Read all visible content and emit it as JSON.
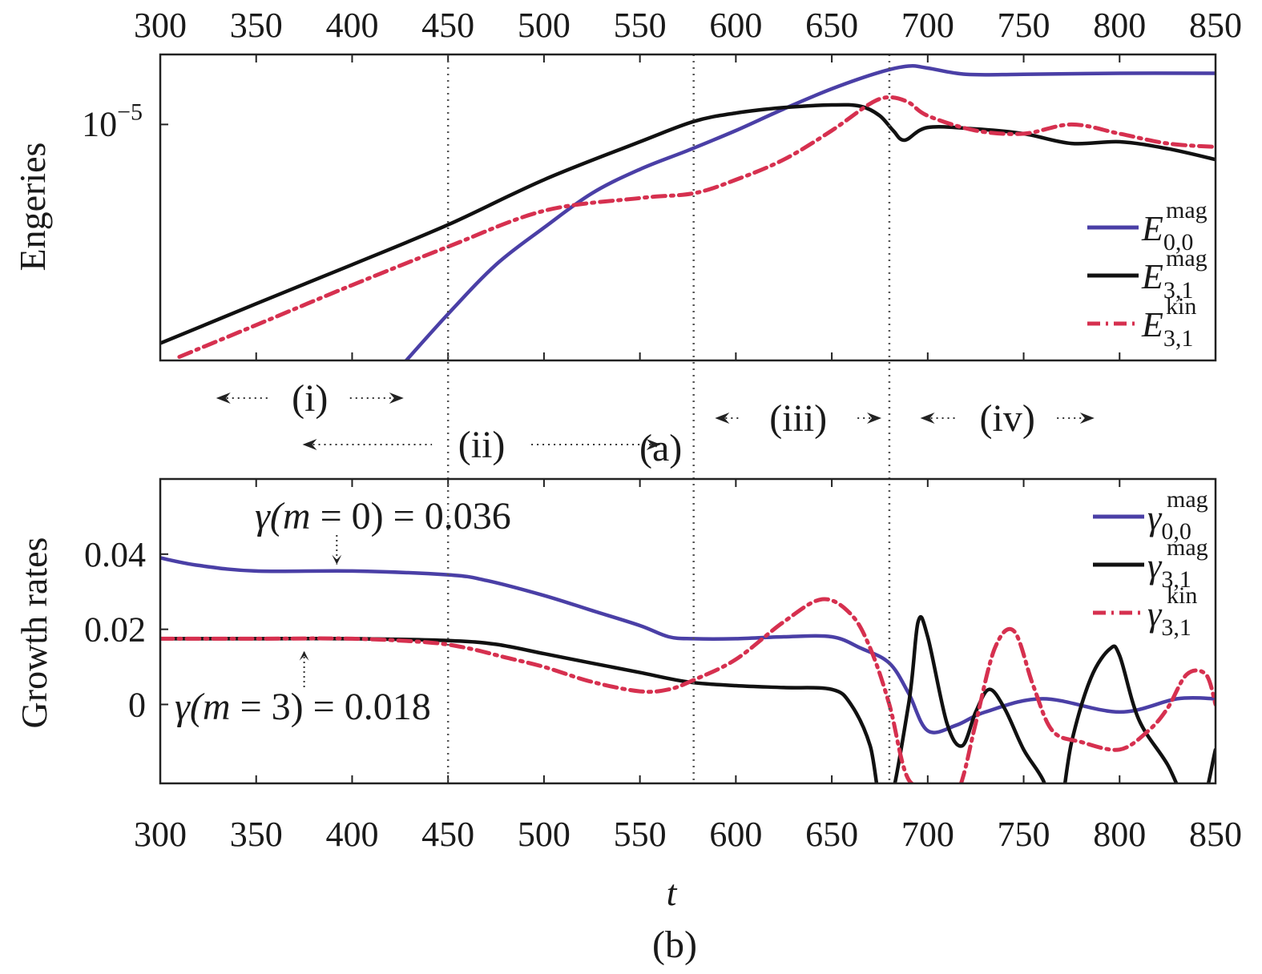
{
  "colors": {
    "blue": "#4a3fa6",
    "black": "#111111",
    "red": "#d6304f"
  },
  "x_ticks": [
    300,
    350,
    400,
    450,
    500,
    550,
    600,
    650,
    700,
    750,
    800,
    850
  ],
  "xlabel": "t",
  "vlines": [
    450,
    578,
    680
  ],
  "panel_labels": {
    "a": "(a)",
    "b": "(b)"
  },
  "phases": [
    {
      "label": "(i)",
      "from": 345,
      "to": 411
    },
    {
      "label": "(ii)",
      "from": 390,
      "to": 545
    },
    {
      "label": "(iii)",
      "from": 605,
      "to": 660
    },
    {
      "label": "(iv)",
      "from": 712,
      "to": 771
    }
  ],
  "chart_data": [
    {
      "type": "line",
      "panel": "a",
      "ylabel": "Engeries",
      "yscale": "log",
      "y_ticks": [
        {
          "value": 1e-05,
          "base": "10",
          "exp": "−5"
        }
      ],
      "xlim": [
        300,
        850
      ],
      "series": [
        {
          "key": "E00mag",
          "sym": "E",
          "sub": "0,0",
          "sup": "mag",
          "color": "blue",
          "style": "solid",
          "x": [
            423,
            450,
            475,
            500,
            525,
            550,
            575,
            600,
            625,
            650,
            675,
            690,
            700,
            720,
            750,
            800,
            850
          ],
          "y": [
            1.9e-06,
            2.8e-06,
            3.9e-06,
            5e-06,
            6.3e-06,
            7.4e-06,
            8.4e-06,
            9.6e-06,
            1.11e-05,
            1.27e-05,
            1.42e-05,
            1.48e-05,
            1.46e-05,
            1.4e-05,
            1.4e-05,
            1.41e-05,
            1.41e-05
          ]
        },
        {
          "key": "E31mag",
          "sym": "E",
          "sub": "3,1",
          "sup": "mag",
          "color": "black",
          "style": "solid",
          "x": [
            300,
            350,
            400,
            450,
            500,
            550,
            578,
            600,
            625,
            650,
            665,
            675,
            682,
            688,
            700,
            725,
            750,
            775,
            800,
            825,
            850
          ],
          "y": [
            2.3e-06,
            3e-06,
            3.9e-06,
            5.1e-06,
            6.9e-06,
            8.9e-06,
            1.02e-05,
            1.08e-05,
            1.12e-05,
            1.14e-05,
            1.13e-05,
            1.06e-05,
            9.6e-06,
            9e-06,
            9.8e-06,
            9.7e-06,
            9.4e-06,
            8.8e-06,
            8.9e-06,
            8.5e-06,
            7.9e-06
          ]
        },
        {
          "key": "E31kin",
          "sym": "E",
          "sub": "3,1",
          "sup": "kin",
          "color": "red",
          "style": "dashdot",
          "x": [
            310,
            350,
            400,
            450,
            500,
            550,
            578,
            600,
            625,
            650,
            670,
            680,
            690,
            700,
            725,
            750,
            775,
            800,
            825,
            850
          ],
          "y": [
            2.1e-06,
            2.6e-06,
            3.4e-06,
            4.4e-06,
            5.6e-06,
            6.1e-06,
            6.3e-06,
            6.9e-06,
            7.9e-06,
            9.6e-06,
            1.15e-05,
            1.2e-05,
            1.16e-05,
            1.06e-05,
            9.6e-06,
            9.4e-06,
            1e-05,
            9.4e-06,
            8.8e-06,
            8.6e-06
          ]
        }
      ]
    },
    {
      "type": "line",
      "panel": "b",
      "ylabel": "Growth rates",
      "ylim": [
        -0.021,
        0.06
      ],
      "y_ticks": [
        0,
        0.02,
        0.04
      ],
      "y_tick_labels": [
        "0",
        "0.02",
        "0.04"
      ],
      "xlim": [
        300,
        850
      ],
      "annotations": [
        {
          "text_pre": "γ(",
          "m": "m",
          "text_post": " = 0) = 0.036",
          "point": [
            392,
            0.036
          ],
          "dir": "down"
        },
        {
          "text_pre": "γ(",
          "m": "m",
          "text_post": " = 3) = 0.018",
          "point": [
            375,
            0.0155
          ],
          "dir": "up"
        }
      ],
      "series": [
        {
          "key": "g00mag",
          "sym": "γ",
          "sub": "0,0",
          "sup": "mag",
          "color": "blue",
          "style": "solid",
          "x": [
            300,
            320,
            350,
            400,
            450,
            470,
            500,
            525,
            550,
            565,
            578,
            600,
            625,
            650,
            665,
            680,
            690,
            700,
            715,
            730,
            760,
            800,
            830,
            850
          ],
          "y": [
            0.039,
            0.037,
            0.0355,
            0.0355,
            0.0345,
            0.033,
            0.029,
            0.025,
            0.021,
            0.018,
            0.0175,
            0.0175,
            0.018,
            0.018,
            0.015,
            0.011,
            0.003,
            -0.007,
            -0.0055,
            -0.002,
            0.0015,
            -0.002,
            0.0015,
            0.0015
          ]
        },
        {
          "key": "g31mag",
          "sym": "γ",
          "sub": "3,1",
          "sup": "mag",
          "color": "black",
          "style": "solid",
          "x": [
            300,
            350,
            400,
            450,
            475,
            500,
            525,
            550,
            575,
            600,
            625,
            650,
            660,
            670,
            678,
            690,
            695,
            700,
            710,
            718,
            725,
            732,
            740,
            750,
            760,
            768,
            775,
            785,
            795,
            800,
            810,
            825,
            840,
            850
          ],
          "y": [
            0.0175,
            0.0175,
            0.0175,
            0.017,
            0.016,
            0.0135,
            0.011,
            0.0085,
            0.006,
            0.005,
            0.0045,
            0.004,
            0.0,
            -0.011,
            -0.03,
            0.0,
            0.022,
            0.018,
            -0.005,
            -0.011,
            -0.002,
            0.004,
            -0.001,
            -0.012,
            -0.02,
            -0.03,
            -0.01,
            0.007,
            0.0148,
            0.013,
            -0.004,
            -0.016,
            -0.03,
            -0.012
          ]
        },
        {
          "key": "g31kin",
          "sym": "γ",
          "sub": "3,1",
          "sup": "kin",
          "color": "red",
          "style": "dashdot",
          "x": [
            300,
            350,
            400,
            440,
            460,
            480,
            500,
            525,
            550,
            565,
            578,
            600,
            625,
            645,
            660,
            670,
            680,
            690,
            705,
            710,
            718,
            725,
            735,
            745,
            755,
            765,
            780,
            800,
            815,
            825,
            835,
            845,
            850
          ],
          "y": [
            0.0175,
            0.0175,
            0.0175,
            0.0165,
            0.015,
            0.0125,
            0.01,
            0.006,
            0.0035,
            0.004,
            0.0065,
            0.012,
            0.022,
            0.028,
            0.024,
            0.015,
            0.0,
            -0.02,
            -0.022,
            -0.03,
            -0.02,
            -0.005,
            0.015,
            0.0195,
            0.005,
            -0.007,
            -0.01,
            -0.012,
            -0.007,
            -0.001,
            0.008,
            0.008,
            0.0
          ]
        }
      ]
    }
  ]
}
